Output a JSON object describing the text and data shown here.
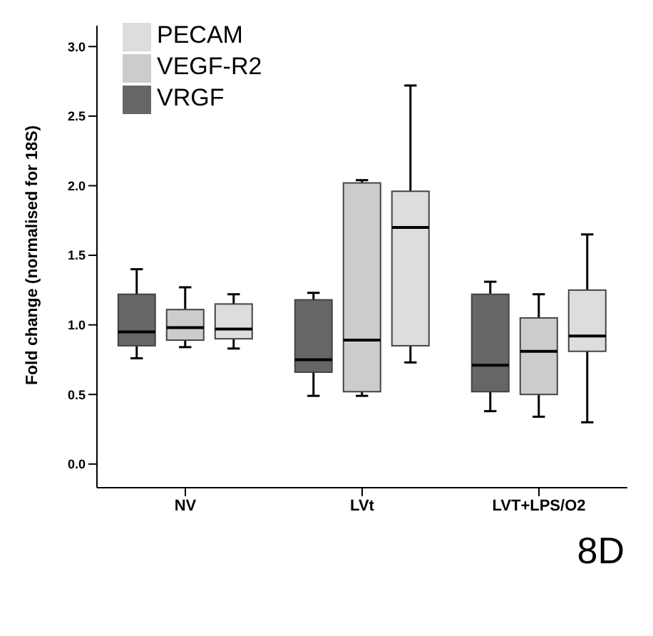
{
  "chart_data": {
    "type": "box",
    "ylabel": "Fold change (normalised for 18S)",
    "categories": [
      "NV",
      "LVt",
      "LVT+LPS/O2"
    ],
    "series": [
      {
        "name": "VRGF",
        "color": "#666666",
        "boxes": [
          {
            "low": 0.76,
            "q1": 0.85,
            "median": 0.95,
            "q3": 1.22,
            "high": 1.4
          },
          {
            "low": 0.49,
            "q1": 0.66,
            "median": 0.75,
            "q3": 1.18,
            "high": 1.23
          },
          {
            "low": 0.38,
            "q1": 0.52,
            "median": 0.71,
            "q3": 1.22,
            "high": 1.31
          }
        ]
      },
      {
        "name": "VEGF-R2",
        "color": "#cccccc",
        "boxes": [
          {
            "low": 0.84,
            "q1": 0.89,
            "median": 0.98,
            "q3": 1.11,
            "high": 1.27
          },
          {
            "low": 0.49,
            "q1": 0.52,
            "median": 0.89,
            "q3": 2.02,
            "high": 2.04
          },
          {
            "low": 0.34,
            "q1": 0.5,
            "median": 0.81,
            "q3": 1.05,
            "high": 1.22
          }
        ]
      },
      {
        "name": "PECAM",
        "color": "#dddddd",
        "boxes": [
          {
            "low": 0.83,
            "q1": 0.9,
            "median": 0.97,
            "q3": 1.15,
            "high": 1.22
          },
          {
            "low": 0.73,
            "q1": 0.85,
            "median": 1.7,
            "q3": 1.96,
            "high": 2.72
          },
          {
            "low": 0.3,
            "q1": 0.81,
            "median": 0.92,
            "q3": 1.25,
            "high": 1.65
          }
        ]
      }
    ],
    "ylim": [
      -0.17,
      3.15
    ],
    "yticks": [
      {
        "value": 0,
        "label": "0.0"
      },
      {
        "value": 0.5,
        "label": "0.5"
      },
      {
        "value": 1,
        "label": "1.0"
      },
      {
        "value": 1.5,
        "label": "1.5"
      },
      {
        "value": 2,
        "label": "2.0"
      },
      {
        "value": 2.5,
        "label": "2.5"
      },
      {
        "value": 3,
        "label": "3.0"
      }
    ],
    "grid": false,
    "legend": "top left",
    "annotations": [
      "8D"
    ]
  }
}
